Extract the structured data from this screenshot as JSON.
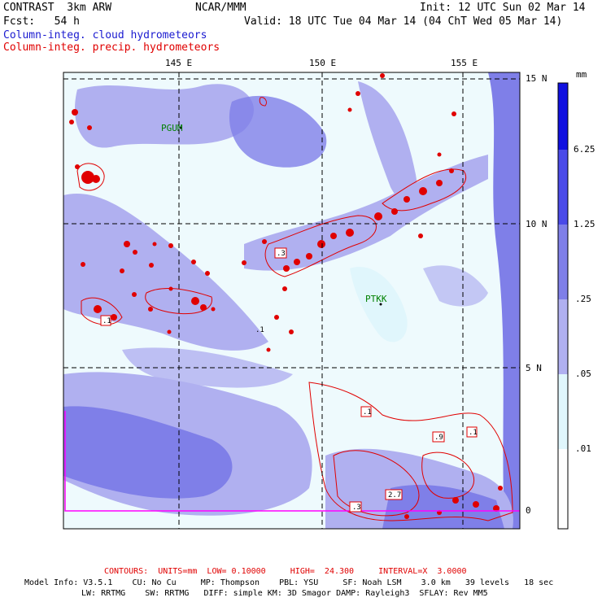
{
  "header": {
    "model": "CONTRAST  3km ARW",
    "org": "NCAR/MMM",
    "init": "Init: 12 UTC Sun 02 Mar 14",
    "fcst": "Fcst:   54 h",
    "valid": "Valid: 18 UTC Tue 04 Mar 14 (04 ChT Wed 05 Mar 14)",
    "field1": "Column-integ. cloud hydrometeors",
    "field2": "Column-integ. precip. hydrometeors"
  },
  "map": {
    "lon_labels": [
      "145 E",
      "150 E",
      "155 E"
    ],
    "lat_labels": [
      "15 N",
      "10 N",
      "5 N",
      "0"
    ],
    "stations": [
      {
        "name": "PGUM"
      },
      {
        "name": "PTKK"
      }
    ],
    "contour_labels": [
      ".3",
      ".1",
      ".1",
      ".1",
      ".9",
      ".1",
      "2.7",
      ".3"
    ]
  },
  "colorbar": {
    "unit": "mm",
    "labels": [
      "6.25",
      "1.25",
      ".25",
      ".05",
      ".01"
    ],
    "colors": [
      "#1010e0",
      "#4a4ae8",
      "#7f7fe8",
      "#b0b0f0",
      "#e0f6fc",
      "#ffffff"
    ]
  },
  "footer": {
    "contours": "CONTOURS:  UNITS=mm  LOW= 0.10000     HIGH=  24.300     INTERVAL=X  3.0000",
    "model_info_1": "Model Info: V3.5.1    CU: No Cu     MP: Thompson    PBL: YSU     SF: Noah LSM    3.0 km   39 levels   18 sec",
    "model_info_2": "LW: RRTMG    SW: RRTMG   DIFF: simple KM: 3D Smagor DAMP: Rayleigh3  SFLAY: Rev MM5"
  },
  "colors": {
    "cloud_light": "#e0f6fc",
    "cloud_mid": "#b0b0f0",
    "cloud_dark": "#7f7fe8",
    "precip": "#e00000",
    "station": "#008000",
    "boundary": "#ff00ff"
  }
}
